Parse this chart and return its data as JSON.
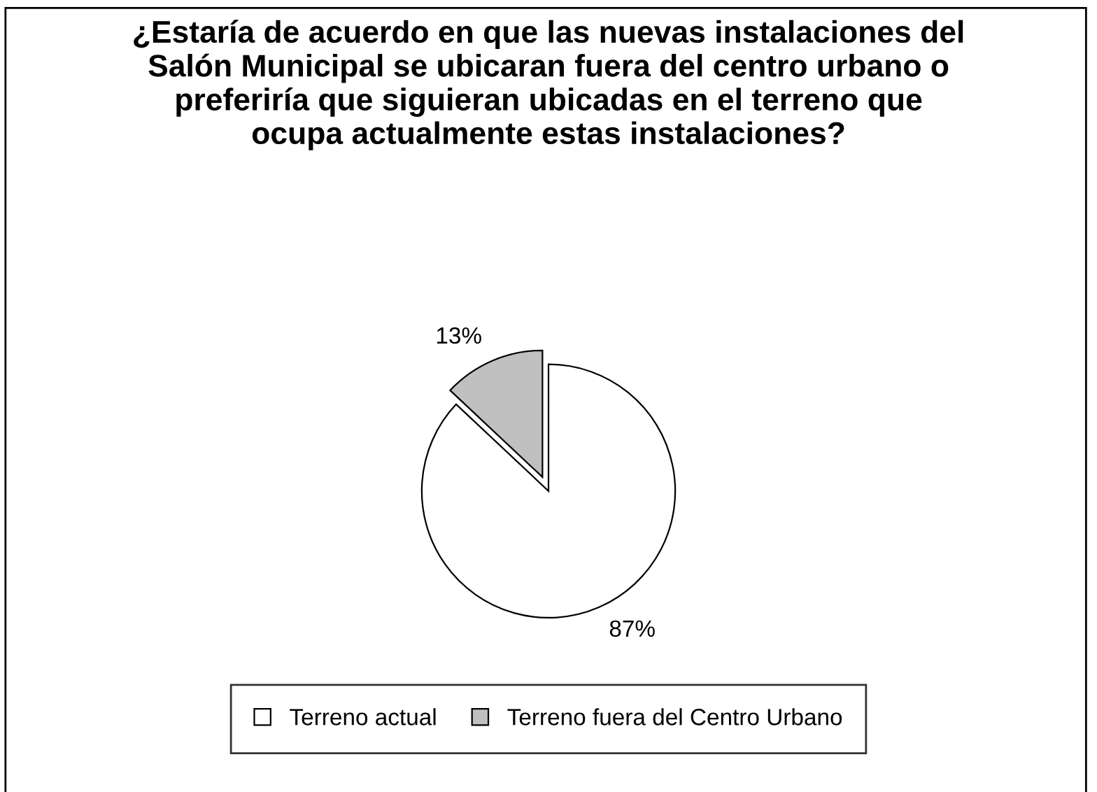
{
  "chart_data": {
    "type": "pie",
    "title": "¿Estaría de acuerdo en que las nuevas instalaciones del Salón Municipal se ubicaran fuera del centro urbano o preferiría que siguieran ubicadas en el terreno que ocupa actualmente estas instalaciones?",
    "categories": [
      "Terreno actual",
      "Terreno fuera del Centro Urbano"
    ],
    "values": [
      87,
      13
    ],
    "colors": [
      "#ffffff",
      "#c0c0c0"
    ],
    "value_labels": [
      "87%",
      "13%"
    ],
    "legend": "bottom"
  }
}
